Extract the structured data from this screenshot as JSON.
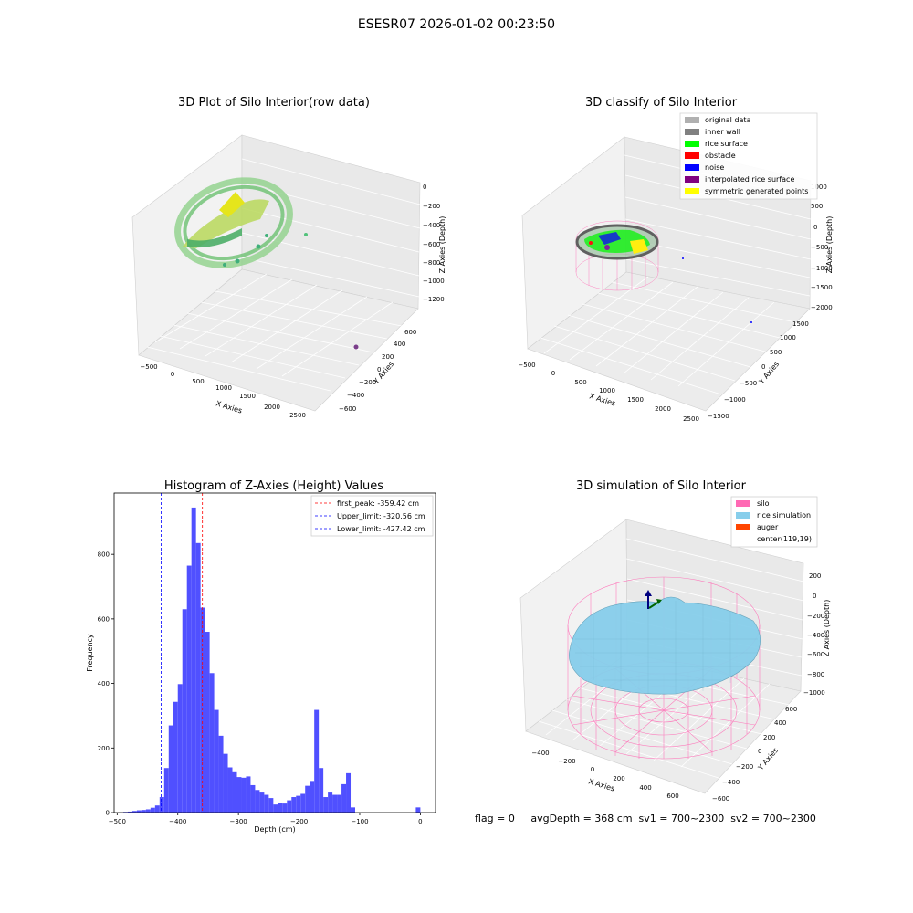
{
  "suptitle": "ESESR07 2026-01-02 00:23:50",
  "panel_raw": {
    "title": "3D Plot of Silo Interior(row data)",
    "xlabel": "X Axies",
    "ylabel": "Y Axies",
    "zlabel": "Z Axies (Depth)",
    "xticks": [
      "−500",
      "0",
      "500",
      "1000",
      "1500",
      "2000",
      "2500"
    ],
    "yticks": [
      "−600",
      "−400",
      "−200",
      "0",
      "200",
      "400",
      "600"
    ],
    "zticks": [
      "0",
      "−200",
      "−400",
      "−600",
      "−800",
      "−1000",
      "−1200"
    ]
  },
  "panel_classify": {
    "title": "3D classify of Silo Interior",
    "xlabel": "X Axies",
    "ylabel": "Y Axies",
    "zlabel": "Z Axies (Depth)",
    "xticks": [
      "−500",
      "0",
      "500",
      "1000",
      "1500",
      "2000",
      "2500"
    ],
    "yticks": [
      "−1500",
      "−1000",
      "−500",
      "0",
      "500",
      "1000",
      "1500"
    ],
    "zticks": [
      "1000",
      "500",
      "0",
      "−500",
      "−1000",
      "−1500",
      "−2000"
    ],
    "legend": [
      {
        "label": "original data",
        "color": "#b0b0b0"
      },
      {
        "label": "inner wall",
        "color": "#808080"
      },
      {
        "label": "rice surface",
        "color": "#00ff00"
      },
      {
        "label": "obstacle",
        "color": "#ff0000"
      },
      {
        "label": "noise",
        "color": "#0000ff"
      },
      {
        "label": "interpolated rice surface",
        "color": "#800080"
      },
      {
        "label": "symmetric generated points",
        "color": "#ffff00"
      }
    ]
  },
  "panel_sim": {
    "title": "3D simulation of Silo Interior",
    "xlabel": "X Axies",
    "ylabel": "Y Axies",
    "zlabel": "Z Axies (Depth)",
    "xticks": [
      "−400",
      "−200",
      "0",
      "200",
      "400",
      "600"
    ],
    "yticks": [
      "−600",
      "−400",
      "−200",
      "0",
      "200",
      "400",
      "600"
    ],
    "zticks": [
      "200",
      "0",
      "−200",
      "−400",
      "−600",
      "−800",
      "−1000"
    ],
    "legend": [
      {
        "label": "silo",
        "color": "#ff69b4"
      },
      {
        "label": "rice simulation",
        "color": "#87ceeb"
      },
      {
        "label": "auger",
        "color": "#ff4500"
      },
      {
        "label": "center(119,19)",
        "color": "#ffffff"
      }
    ]
  },
  "status_line": "flag = 0     avgDepth = 368 cm  sv1 = 700~2300  sv2 = 700~2300",
  "chart_data": {
    "type": "bar",
    "title": "Histogram of Z-Axies (Height) Values",
    "xlabel": "Depth (cm)",
    "ylabel": "Frequency",
    "xlim": [
      -505,
      25
    ],
    "ylim": [
      0,
      990
    ],
    "bin_width": 7.5,
    "bar_color": "#5050ff",
    "xticks": [
      -500,
      -400,
      -300,
      -200,
      -100,
      0
    ],
    "xtick_labels": [
      "−500",
      "−400",
      "−300",
      "−200",
      "−100",
      "0"
    ],
    "yticks": [
      0,
      200,
      400,
      600,
      800
    ],
    "yticks_labels": [
      "0",
      "200",
      "400",
      "600",
      "800"
    ],
    "bins": [
      {
        "x": -490,
        "v": 2
      },
      {
        "x": -482.5,
        "v": 3
      },
      {
        "x": -475,
        "v": 5
      },
      {
        "x": -467.5,
        "v": 7
      },
      {
        "x": -460,
        "v": 8
      },
      {
        "x": -452.5,
        "v": 10
      },
      {
        "x": -445,
        "v": 15
      },
      {
        "x": -437.5,
        "v": 22
      },
      {
        "x": -430,
        "v": 48
      },
      {
        "x": -422.5,
        "v": 138
      },
      {
        "x": -415,
        "v": 270
      },
      {
        "x": -407.5,
        "v": 343
      },
      {
        "x": -400,
        "v": 398
      },
      {
        "x": -392.5,
        "v": 630
      },
      {
        "x": -385,
        "v": 765
      },
      {
        "x": -377.5,
        "v": 945
      },
      {
        "x": -370,
        "v": 835
      },
      {
        "x": -362.5,
        "v": 635
      },
      {
        "x": -355,
        "v": 560
      },
      {
        "x": -347.5,
        "v": 432
      },
      {
        "x": -340,
        "v": 318
      },
      {
        "x": -332.5,
        "v": 238
      },
      {
        "x": -325,
        "v": 182
      },
      {
        "x": -317.5,
        "v": 140
      },
      {
        "x": -310,
        "v": 125
      },
      {
        "x": -302.5,
        "v": 110
      },
      {
        "x": -295,
        "v": 108
      },
      {
        "x": -287.5,
        "v": 112
      },
      {
        "x": -280,
        "v": 85
      },
      {
        "x": -272.5,
        "v": 70
      },
      {
        "x": -265,
        "v": 62
      },
      {
        "x": -257.5,
        "v": 55
      },
      {
        "x": -250,
        "v": 45
      },
      {
        "x": -242.5,
        "v": 25
      },
      {
        "x": -235,
        "v": 30
      },
      {
        "x": -227.5,
        "v": 28
      },
      {
        "x": -220,
        "v": 38
      },
      {
        "x": -212.5,
        "v": 48
      },
      {
        "x": -205,
        "v": 52
      },
      {
        "x": -197.5,
        "v": 58
      },
      {
        "x": -190,
        "v": 83
      },
      {
        "x": -182.5,
        "v": 98
      },
      {
        "x": -175,
        "v": 318
      },
      {
        "x": -167.5,
        "v": 138
      },
      {
        "x": -160,
        "v": 48
      },
      {
        "x": -152.5,
        "v": 62
      },
      {
        "x": -145,
        "v": 55
      },
      {
        "x": -137.5,
        "v": 55
      },
      {
        "x": -130,
        "v": 88
      },
      {
        "x": -122.5,
        "v": 122
      },
      {
        "x": -115,
        "v": 16
      },
      {
        "x": -100,
        "v": 0
      },
      {
        "x": -7.5,
        "v": 16
      }
    ],
    "vlines": [
      {
        "x": -359.42,
        "color": "#ff0000",
        "label": "first_peak: -359.42 cm"
      },
      {
        "x": -320.56,
        "color": "#0000ff",
        "label": "Upper_limit: -320.56 cm"
      },
      {
        "x": -427.42,
        "color": "#0000ff",
        "label": "Lower_limit: -427.42 cm"
      }
    ]
  }
}
